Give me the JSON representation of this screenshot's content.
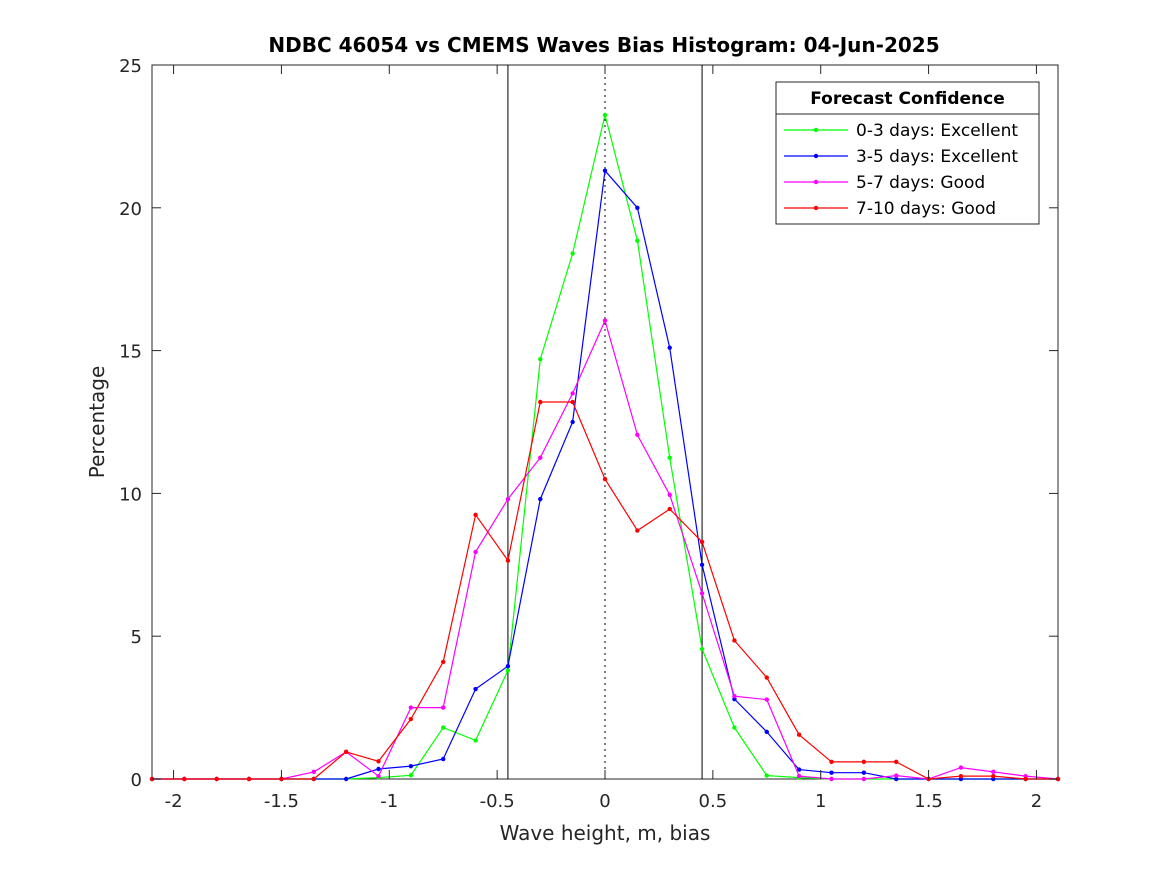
{
  "chart_data": {
    "type": "line",
    "title": "NDBC 46054 vs CMEMS Waves Bias Histogram: 04-Jun-2025",
    "xlabel": "Wave height, m, bias",
    "ylabel": "Percentage",
    "xlim": [
      -2.1,
      2.1
    ],
    "ylim": [
      0,
      25
    ],
    "xticks": [
      -2,
      -1.5,
      -1,
      -0.5,
      0,
      0.5,
      1,
      1.5,
      2
    ],
    "xtick_labels": [
      "-2",
      "-1.5",
      "-1",
      "-0.5",
      "0",
      "0.5",
      "1",
      "1.5",
      "2"
    ],
    "yticks": [
      0,
      5,
      10,
      15,
      20,
      25
    ],
    "ytick_labels": [
      "0",
      "5",
      "10",
      "15",
      "20",
      "25"
    ],
    "grid": false,
    "vertical_lines": [
      {
        "x": -0.45,
        "style": "solid"
      },
      {
        "x": 0,
        "style": "dotted"
      },
      {
        "x": 0.45,
        "style": "solid"
      }
    ],
    "legend": {
      "title": "Forecast Confidence",
      "placement": "top-right"
    },
    "x": [
      -2.1,
      -1.95,
      -1.8,
      -1.65,
      -1.5,
      -1.35,
      -1.2,
      -1.05,
      -0.9,
      -0.75,
      -0.6,
      -0.45,
      -0.3,
      -0.15,
      0,
      0.15,
      0.3,
      0.45,
      0.6,
      0.75,
      0.9,
      1.05,
      1.2,
      1.35,
      1.5,
      1.65,
      1.8,
      1.95,
      2.1
    ],
    "series": [
      {
        "name": "0-3 days: Excellent",
        "color": "#00ff00",
        "values": [
          0,
          0,
          0,
          0,
          0,
          0,
          0,
          0.05,
          0.13,
          1.8,
          1.35,
          3.8,
          14.7,
          18.4,
          23.25,
          18.85,
          11.25,
          4.55,
          1.8,
          0.12,
          0.05,
          0,
          0,
          0,
          0,
          0,
          0,
          0,
          0
        ]
      },
      {
        "name": "3-5 days: Excellent",
        "color": "#0000ff",
        "values": [
          0,
          0,
          0,
          0,
          0,
          0,
          0,
          0.35,
          0.45,
          0.7,
          3.15,
          3.95,
          9.8,
          12.5,
          21.3,
          20.0,
          15.1,
          7.5,
          2.8,
          1.65,
          0.33,
          0.22,
          0.22,
          0,
          0,
          0,
          0,
          0,
          0
        ]
      },
      {
        "name": "5-7 days: Good",
        "color": "#ff00ff",
        "values": [
          0,
          0,
          0,
          0,
          0,
          0.25,
          0.95,
          0.1,
          2.5,
          2.5,
          7.95,
          9.8,
          11.25,
          13.5,
          16.05,
          12.05,
          9.95,
          6.5,
          2.9,
          2.78,
          0.1,
          0,
          0,
          0.12,
          0,
          0.4,
          0.25,
          0.1,
          0
        ]
      },
      {
        "name": "7-10 days: Good",
        "color": "#ff0000",
        "values": [
          0,
          0,
          0,
          0,
          0,
          0,
          0.95,
          0.62,
          2.1,
          4.1,
          9.25,
          7.65,
          13.2,
          13.2,
          10.5,
          8.7,
          9.45,
          8.3,
          4.85,
          3.55,
          1.55,
          0.6,
          0.6,
          0.6,
          0,
          0.1,
          0.1,
          0,
          0
        ]
      }
    ]
  }
}
